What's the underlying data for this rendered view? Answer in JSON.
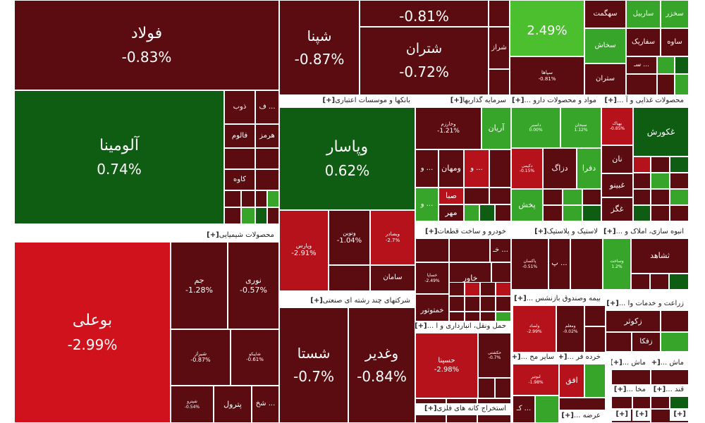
{
  "colors": {
    "dark_red": "#5a0c10",
    "red": "#b5121b",
    "bright_red": "#d0121c",
    "dark_green": "#0f5d12",
    "green": "#37a52a",
    "bright_green": "#4cbf2f",
    "header_bg": "#ffffff"
  },
  "groups": [
    {
      "label": "بانکها و موسسات اعتباری",
      "plus": "[+]"
    },
    {
      "label": "سرمایه گذاریها",
      "plus": "[+]"
    },
    {
      "label": "مواد و محصولات دارو ...",
      "plus": "[+]"
    },
    {
      "label": "محصولات غذایی و آ ...",
      "plus": "[+]"
    },
    {
      "label": "محصولات شیمیایی",
      "plus": "[+]"
    },
    {
      "label": "خودرو و ساخت قطعات",
      "plus": "[+]"
    },
    {
      "label": "لاستیک و پلاستیک",
      "plus": "[+]"
    },
    {
      "label": "انبوه سازی، املاک و ...",
      "plus": "[+]"
    },
    {
      "label": "شرکتهای چند رشته ای صنعتی",
      "plus": "[+]"
    },
    {
      "label": "بیمه وصندوق بازنشس ...",
      "plus": "[+]"
    },
    {
      "label": "زراعت و خدمات وا ...",
      "plus": "[+]"
    },
    {
      "label": "حمل ونقل، انبارداری و ا ...",
      "plus": "[+]"
    },
    {
      "label": "سایر مح ...",
      "plus": "[+]"
    },
    {
      "label": "خرده فر ...",
      "plus": "[+]"
    },
    {
      "label": "ماش ...",
      "plus": "[+]"
    },
    {
      "label": "ماش ...",
      "plus": "[+]"
    },
    {
      "label": "استخراج کانه های فلزی",
      "plus": "[+]"
    },
    {
      "label": "مخا ...",
      "plus": "[+]"
    },
    {
      "label": "قند ...",
      "plus": "[+]"
    },
    {
      "label": "عرضه ...",
      "plus": "[+]"
    },
    {
      "label": "",
      "plus": "[+]"
    },
    {
      "label": "",
      "plus": "[+]"
    },
    {
      "label": "",
      "plus": "[+]"
    }
  ],
  "tiles": [
    {
      "name": "فولاد",
      "change": "-0.83%"
    },
    {
      "name": "شپنا",
      "change": "-0.87%"
    },
    {
      "name": "",
      "change": "-0.81%"
    },
    {
      "name": "شتران",
      "change": "-0.72%"
    },
    {
      "name": "شراز",
      "change": ""
    },
    {
      "name": "",
      "change": "2.49%"
    },
    {
      "name": "سهگمت",
      "change": ""
    },
    {
      "name": "ساربیل",
      "change": ""
    },
    {
      "name": "سخزر",
      "change": ""
    },
    {
      "name": "سخاش",
      "change": ""
    },
    {
      "name": "سفاریک",
      "change": ""
    },
    {
      "name": "ساوه",
      "change": ""
    },
    {
      "name": "سپاها",
      "change": "-0.81%"
    },
    {
      "name": "ستران",
      "change": ""
    },
    {
      "name": "سـ ...",
      "change": ""
    },
    {
      "name": "آلومینا",
      "change": "0.74%"
    },
    {
      "name": "ذوب",
      "change": ""
    },
    {
      "name": "ف ...",
      "change": ""
    },
    {
      "name": "فالوم",
      "change": ""
    },
    {
      "name": "هرمز",
      "change": ""
    },
    {
      "name": "کاوه",
      "change": ""
    },
    {
      "name": "وپاسار",
      "change": "0.62%"
    },
    {
      "name": "وپارس",
      "change": "-2.91%"
    },
    {
      "name": "ونوین",
      "change": "-1.04%"
    },
    {
      "name": "وبصادر",
      "change": "-2.7%"
    },
    {
      "name": "سامان",
      "change": ""
    },
    {
      "name": "وخارزم",
      "change": "-1.21%"
    },
    {
      "name": "آریان",
      "change": ""
    },
    {
      "name": "و ...",
      "change": ""
    },
    {
      "name": "ومهان",
      "change": ""
    },
    {
      "name": "و ...",
      "change": ""
    },
    {
      "name": "صبا",
      "change": ""
    },
    {
      "name": "و ...",
      "change": ""
    },
    {
      "name": "مهر",
      "change": ""
    },
    {
      "name": "داسبر",
      "change": "0.00%"
    },
    {
      "name": "سبحان",
      "change": "1.12%"
    },
    {
      "name": "دزاگ",
      "change": ""
    },
    {
      "name": "دفرا",
      "change": ""
    },
    {
      "name": "دکیمی",
      "change": "-0.15%"
    },
    {
      "name": "پخش",
      "change": ""
    },
    {
      "name": "بهپاک",
      "change": "-0.85%"
    },
    {
      "name": "غکورش",
      "change": ""
    },
    {
      "name": "نان",
      "change": ""
    },
    {
      "name": "غبینو",
      "change": ""
    },
    {
      "name": "غگز",
      "change": ""
    },
    {
      "name": "بوعلی",
      "change": "-2.99%"
    },
    {
      "name": "جم",
      "change": "-1.28%"
    },
    {
      "name": "نوری",
      "change": "-0.57%"
    },
    {
      "name": "شیراز",
      "change": "-0.87%"
    },
    {
      "name": "شاپیکو",
      "change": "-0.61%"
    },
    {
      "name": "شپترو",
      "change": "-0.54%"
    },
    {
      "name": "پترول",
      "change": ""
    },
    {
      "name": "شخ ...",
      "change": ""
    },
    {
      "name": "خاور",
      "change": ""
    },
    {
      "name": "خـ ...",
      "change": ""
    },
    {
      "name": "خساپا",
      "change": "-2.49%"
    },
    {
      "name": "خمتوتور",
      "change": ""
    },
    {
      "name": "پ ...",
      "change": ""
    },
    {
      "name": "پاکسان",
      "change": "-0.51%"
    },
    {
      "name": "ثشاهد",
      "change": ""
    },
    {
      "name": "وساخت",
      "change": "1.2%"
    },
    {
      "name": "شستا",
      "change": "-0.7%"
    },
    {
      "name": "وغدیر",
      "change": "-0.84%"
    },
    {
      "name": "ولصاد",
      "change": "-2.99%"
    },
    {
      "name": "ومعلم",
      "change": "-0.02%"
    },
    {
      "name": "زکوثر",
      "change": ""
    },
    {
      "name": "زفکا",
      "change": ""
    },
    {
      "name": "حسینا",
      "change": "-2.98%"
    },
    {
      "name": "حکشتی",
      "change": "-0.7%"
    },
    {
      "name": "کـ ...",
      "change": ""
    },
    {
      "name": "افق",
      "change": ""
    },
    {
      "name": "لبوتیر",
      "change": "-1.98%"
    }
  ]
}
